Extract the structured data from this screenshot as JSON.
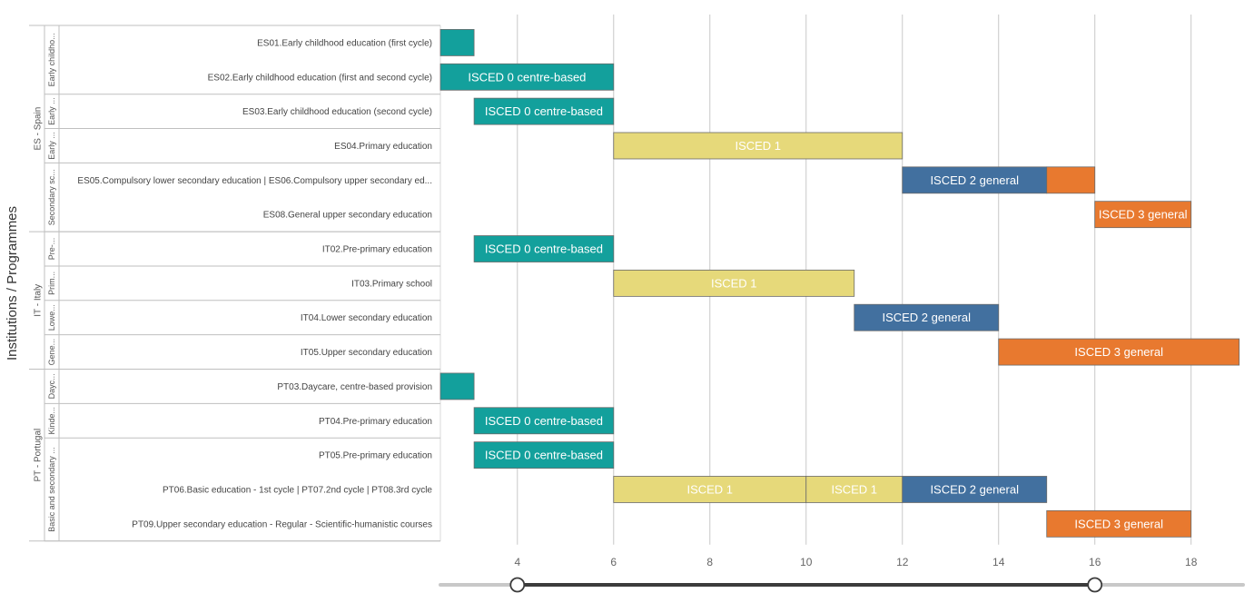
{
  "chart_data": {
    "type": "gantt",
    "yaxis_title": "Institutions / Programmes",
    "xlim": [
      2.4,
      19.1
    ],
    "xticks": [
      4,
      6,
      8,
      10,
      12,
      14,
      16,
      18
    ],
    "colors": {
      "ISCED 0": "#13a09c",
      "ISCED 1": "#e6d97a",
      "ISCED 2": "#42709f",
      "ISCED 3": "#e8792f"
    },
    "countries": [
      {
        "name": "ES - Spain",
        "groups": [
          {
            "name": "Early childho...",
            "rows": [
              {
                "label": "ES01.Early childhood education (first cycle)",
                "bars": [
                  {
                    "start": 2.4,
                    "end": 3.1,
                    "level": "ISCED 0",
                    "text": ""
                  }
                ]
              },
              {
                "label": "ES02.Early childhood education (first and second cycle)",
                "bars": [
                  {
                    "start": 2.4,
                    "end": 6,
                    "level": "ISCED 0",
                    "text": "ISCED 0 centre-based"
                  }
                ]
              }
            ]
          },
          {
            "name": "Early ...",
            "rows": [
              {
                "label": "ES03.Early childhood education (second cycle)",
                "bars": [
                  {
                    "start": 3.1,
                    "end": 6,
                    "level": "ISCED 0",
                    "text": "ISCED 0 centre-based"
                  }
                ]
              }
            ]
          },
          {
            "name": "Early ...",
            "rows": [
              {
                "label": "ES04.Primary education",
                "bars": [
                  {
                    "start": 6,
                    "end": 12,
                    "level": "ISCED 1",
                    "text": "ISCED 1"
                  }
                ]
              }
            ]
          },
          {
            "name": "Secondary sc...",
            "rows": [
              {
                "label": "ES05.Compulsory lower secondary education | ES06.Compulsory upper secondary ed...",
                "bars": [
                  {
                    "start": 12,
                    "end": 15,
                    "level": "ISCED 2",
                    "text": "ISCED 2 general"
                  },
                  {
                    "start": 15,
                    "end": 16,
                    "level": "ISCED 3",
                    "text": ""
                  }
                ]
              },
              {
                "label": "ES08.General upper secondary education",
                "bars": [
                  {
                    "start": 16,
                    "end": 18,
                    "level": "ISCED 3",
                    "text": "ISCED 3 general"
                  }
                ]
              }
            ]
          }
        ]
      },
      {
        "name": "IT - Italy",
        "groups": [
          {
            "name": "Pre-...",
            "rows": [
              {
                "label": "IT02.Pre-primary education",
                "bars": [
                  {
                    "start": 3.1,
                    "end": 6,
                    "level": "ISCED 0",
                    "text": "ISCED 0 centre-based"
                  }
                ]
              }
            ]
          },
          {
            "name": "Prim...",
            "rows": [
              {
                "label": "IT03.Primary school",
                "bars": [
                  {
                    "start": 6,
                    "end": 11,
                    "level": "ISCED 1",
                    "text": "ISCED 1"
                  }
                ]
              }
            ]
          },
          {
            "name": "Lowe...",
            "rows": [
              {
                "label": "IT04.Lower secondary education",
                "bars": [
                  {
                    "start": 11,
                    "end": 14,
                    "level": "ISCED 2",
                    "text": "ISCED 2 general"
                  }
                ]
              }
            ]
          },
          {
            "name": "Gene...",
            "rows": [
              {
                "label": "IT05.Upper secondary education",
                "bars": [
                  {
                    "start": 14,
                    "end": 19,
                    "level": "ISCED 3",
                    "text": "ISCED 3 general"
                  }
                ]
              }
            ]
          }
        ]
      },
      {
        "name": "PT - Portugal",
        "groups": [
          {
            "name": "Dayc...",
            "rows": [
              {
                "label": "PT03.Daycare, centre-based provision",
                "bars": [
                  {
                    "start": 2.4,
                    "end": 3.1,
                    "level": "ISCED 0",
                    "text": ""
                  }
                ]
              }
            ]
          },
          {
            "name": "Kinde...",
            "rows": [
              {
                "label": "PT04.Pre-primary education",
                "bars": [
                  {
                    "start": 3.1,
                    "end": 6,
                    "level": "ISCED 0",
                    "text": "ISCED 0 centre-based"
                  }
                ]
              }
            ]
          },
          {
            "name": "Basic and secondary ...",
            "rows": [
              {
                "label": "PT05.Pre-primary education",
                "bars": [
                  {
                    "start": 3.1,
                    "end": 6,
                    "level": "ISCED 0",
                    "text": "ISCED 0 centre-based"
                  }
                ]
              },
              {
                "label": "PT06.Basic education - 1st cycle | PT07.2nd cycle | PT08.3rd cycle",
                "bars": [
                  {
                    "start": 6,
                    "end": 10,
                    "level": "ISCED 1",
                    "text": "ISCED 1"
                  },
                  {
                    "start": 10,
                    "end": 12,
                    "level": "ISCED 1",
                    "text": "ISCED 1"
                  },
                  {
                    "start": 12,
                    "end": 15,
                    "level": "ISCED 2",
                    "text": "ISCED 2 general"
                  }
                ]
              },
              {
                "label": "PT09.Upper secondary education - Regular - Scientific-humanistic courses",
                "bars": [
                  {
                    "start": 15,
                    "end": 18,
                    "level": "ISCED 3",
                    "text": "ISCED 3 general"
                  }
                ]
              }
            ]
          }
        ]
      }
    ],
    "slider": {
      "min": 2.4,
      "max": 19.1,
      "low": 4,
      "high": 16
    }
  }
}
